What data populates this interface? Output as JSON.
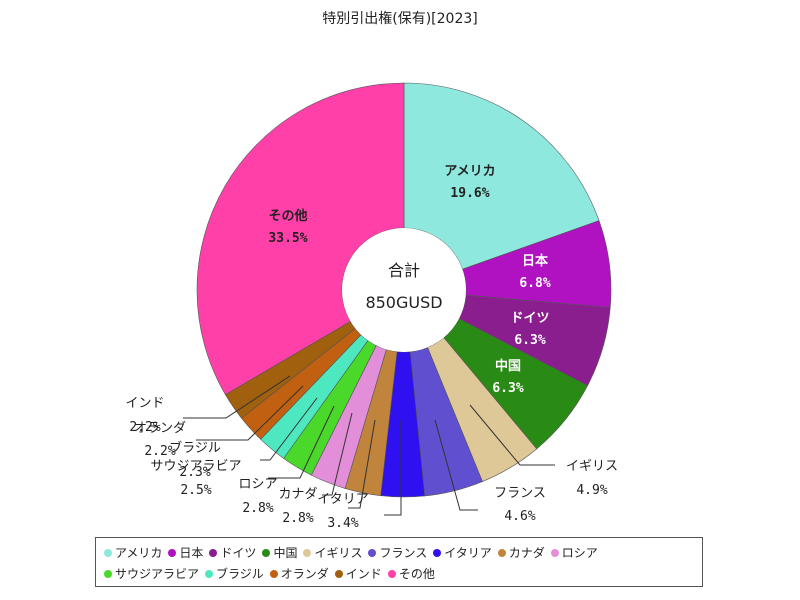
{
  "chart_data": {
    "type": "pie",
    "title": "特別引出権(保有)[2023]",
    "center_label": "合計",
    "center_value": "850GUSD",
    "slices": [
      {
        "name": "アメリカ",
        "value": 19.6,
        "label": "19.6%",
        "color": "#8ee8de"
      },
      {
        "name": "日本",
        "value": 6.8,
        "label": "6.8%",
        "color": "#b012c2"
      },
      {
        "name": "ドイツ",
        "value": 6.3,
        "label": "6.3%",
        "color": "#8a1e8e"
      },
      {
        "name": "中国",
        "value": 6.3,
        "label": "6.3%",
        "color": "#2a8a16"
      },
      {
        "name": "イギリス",
        "value": 4.9,
        "label": "4.9%",
        "color": "#dfc898"
      },
      {
        "name": "フランス",
        "value": 4.6,
        "label": "4.6%",
        "color": "#6050d0"
      },
      {
        "name": "イタリア",
        "value": 3.4,
        "label": "3.4%",
        "color": "#2e10f0"
      },
      {
        "name": "カナダ",
        "value": 2.8,
        "label": "2.8%",
        "color": "#c0843c"
      },
      {
        "name": "ロシア",
        "value": 2.8,
        "label": "2.8%",
        "color": "#e28ed8"
      },
      {
        "name": "サウジアラビア",
        "value": 2.5,
        "label": "2.5%",
        "color": "#4ad82a"
      },
      {
        "name": "ブラジル",
        "value": 2.3,
        "label": "2.3%",
        "color": "#4ee8c0"
      },
      {
        "name": "オランダ",
        "value": 2.2,
        "label": "2.2%",
        "color": "#c06010"
      },
      {
        "name": "インド",
        "value": 2.2,
        "label": "2.2%",
        "color": "#a0600e"
      },
      {
        "name": "その他",
        "value": 33.5,
        "label": "33.5%",
        "color": "#ff40a8"
      }
    ],
    "legend_position": "bottom"
  }
}
